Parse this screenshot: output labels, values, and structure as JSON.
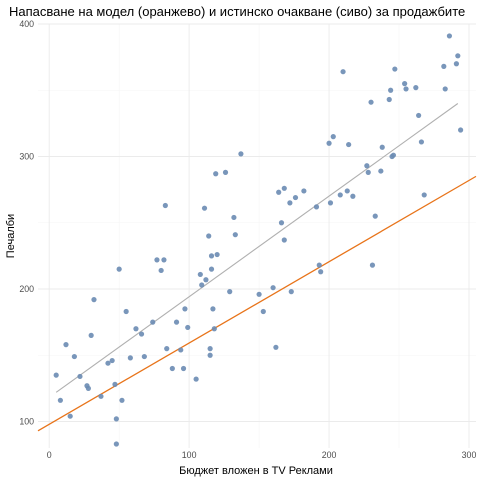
{
  "chart_data": {
    "type": "scatter",
    "title": "Напасване на модел (оранжево) и истинско очакване (сиво) за продажбите",
    "xlabel": "Бюджет вложен в TV Реклами",
    "ylabel": "Печалби",
    "xlim": [
      -8,
      305
    ],
    "ylim": [
      80,
      400
    ],
    "xticks": [
      0,
      100,
      200,
      300
    ],
    "yticks": [
      100,
      200,
      300,
      400
    ],
    "grid": true,
    "point_color": "#6a8bb3",
    "fit_line": {
      "color": "#e8741a",
      "x": [
        -8,
        305
      ],
      "y": [
        93,
        285
      ]
    },
    "true_line": {
      "color": "#b0b0b0",
      "x": [
        5,
        292
      ],
      "y": [
        122,
        340
      ]
    },
    "points": [
      {
        "x": 5,
        "y": 135
      },
      {
        "x": 8,
        "y": 116
      },
      {
        "x": 12,
        "y": 158
      },
      {
        "x": 15,
        "y": 104
      },
      {
        "x": 18,
        "y": 149
      },
      {
        "x": 22,
        "y": 134
      },
      {
        "x": 27,
        "y": 127
      },
      {
        "x": 28,
        "y": 125
      },
      {
        "x": 30,
        "y": 165
      },
      {
        "x": 32,
        "y": 192
      },
      {
        "x": 37,
        "y": 119
      },
      {
        "x": 42,
        "y": 144
      },
      {
        "x": 45,
        "y": 146
      },
      {
        "x": 47,
        "y": 128
      },
      {
        "x": 48,
        "y": 102
      },
      {
        "x": 48,
        "y": 83
      },
      {
        "x": 50,
        "y": 215
      },
      {
        "x": 52,
        "y": 116
      },
      {
        "x": 55,
        "y": 183
      },
      {
        "x": 58,
        "y": 148
      },
      {
        "x": 62,
        "y": 170
      },
      {
        "x": 66,
        "y": 166
      },
      {
        "x": 68,
        "y": 149
      },
      {
        "x": 74,
        "y": 175
      },
      {
        "x": 77,
        "y": 222
      },
      {
        "x": 80,
        "y": 214
      },
      {
        "x": 82,
        "y": 222
      },
      {
        "x": 83,
        "y": 263
      },
      {
        "x": 84,
        "y": 155
      },
      {
        "x": 88,
        "y": 140
      },
      {
        "x": 91,
        "y": 175
      },
      {
        "x": 94,
        "y": 154
      },
      {
        "x": 96,
        "y": 140
      },
      {
        "x": 97,
        "y": 185
      },
      {
        "x": 99,
        "y": 171
      },
      {
        "x": 105,
        "y": 132
      },
      {
        "x": 108,
        "y": 211
      },
      {
        "x": 109,
        "y": 203
      },
      {
        "x": 111,
        "y": 261
      },
      {
        "x": 112,
        "y": 207
      },
      {
        "x": 114,
        "y": 240
      },
      {
        "x": 115,
        "y": 150
      },
      {
        "x": 115,
        "y": 155
      },
      {
        "x": 116,
        "y": 225
      },
      {
        "x": 116,
        "y": 215
      },
      {
        "x": 117,
        "y": 185
      },
      {
        "x": 118,
        "y": 170
      },
      {
        "x": 119,
        "y": 287
      },
      {
        "x": 120,
        "y": 226
      },
      {
        "x": 126,
        "y": 288
      },
      {
        "x": 129,
        "y": 198
      },
      {
        "x": 132,
        "y": 254
      },
      {
        "x": 133,
        "y": 241
      },
      {
        "x": 137,
        "y": 302
      },
      {
        "x": 150,
        "y": 196
      },
      {
        "x": 153,
        "y": 183
      },
      {
        "x": 160,
        "y": 201
      },
      {
        "x": 162,
        "y": 156
      },
      {
        "x": 164,
        "y": 273
      },
      {
        "x": 166,
        "y": 250
      },
      {
        "x": 168,
        "y": 237
      },
      {
        "x": 168,
        "y": 276
      },
      {
        "x": 172,
        "y": 265
      },
      {
        "x": 173,
        "y": 198
      },
      {
        "x": 176,
        "y": 269
      },
      {
        "x": 182,
        "y": 274
      },
      {
        "x": 191,
        "y": 262
      },
      {
        "x": 193,
        "y": 218
      },
      {
        "x": 194,
        "y": 213
      },
      {
        "x": 200,
        "y": 310
      },
      {
        "x": 201,
        "y": 265
      },
      {
        "x": 203,
        "y": 315
      },
      {
        "x": 208,
        "y": 271
      },
      {
        "x": 210,
        "y": 364
      },
      {
        "x": 213,
        "y": 274
      },
      {
        "x": 214,
        "y": 309
      },
      {
        "x": 217,
        "y": 270
      },
      {
        "x": 227,
        "y": 293
      },
      {
        "x": 228,
        "y": 288
      },
      {
        "x": 230,
        "y": 341
      },
      {
        "x": 231,
        "y": 218
      },
      {
        "x": 233,
        "y": 255
      },
      {
        "x": 237,
        "y": 289
      },
      {
        "x": 238,
        "y": 307
      },
      {
        "x": 243,
        "y": 343
      },
      {
        "x": 244,
        "y": 350
      },
      {
        "x": 245,
        "y": 300
      },
      {
        "x": 246,
        "y": 301
      },
      {
        "x": 247,
        "y": 366
      },
      {
        "x": 254,
        "y": 355
      },
      {
        "x": 255,
        "y": 351
      },
      {
        "x": 262,
        "y": 352
      },
      {
        "x": 264,
        "y": 331
      },
      {
        "x": 266,
        "y": 311
      },
      {
        "x": 268,
        "y": 271
      },
      {
        "x": 282,
        "y": 368
      },
      {
        "x": 283,
        "y": 351
      },
      {
        "x": 286,
        "y": 391
      },
      {
        "x": 291,
        "y": 370
      },
      {
        "x": 292,
        "y": 376
      },
      {
        "x": 294,
        "y": 320
      }
    ]
  }
}
